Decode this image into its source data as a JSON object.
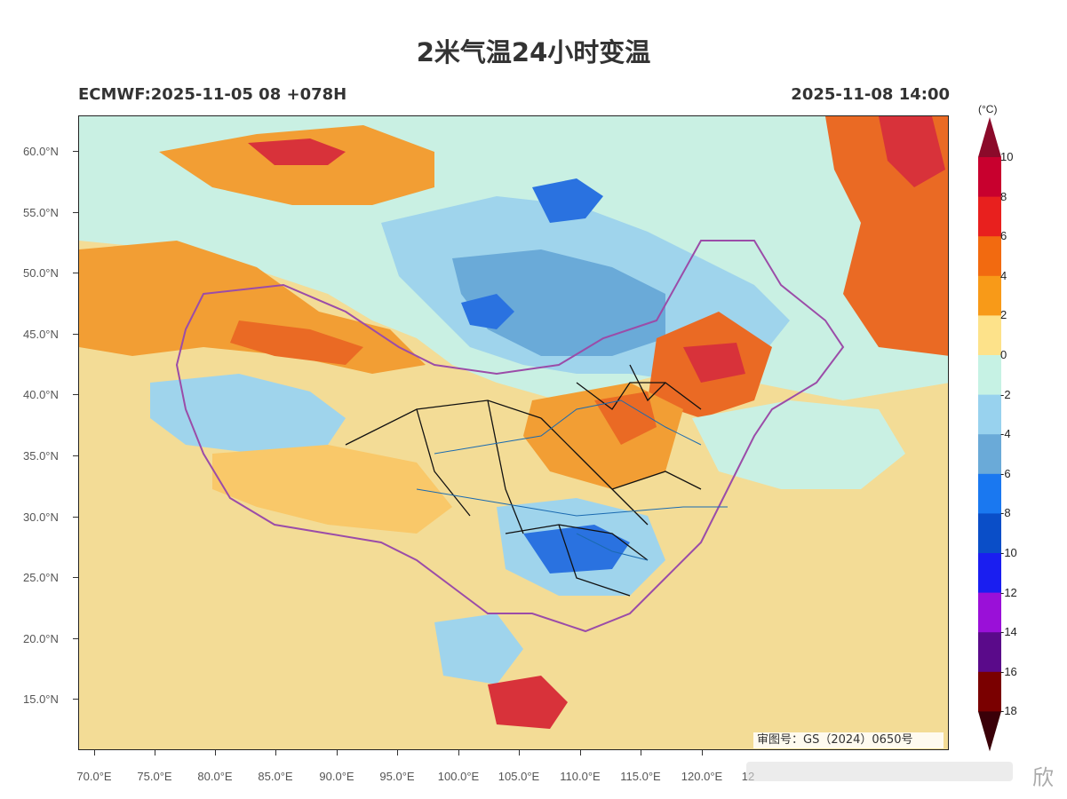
{
  "title": "2米气温24小时变温",
  "subtitle_left": "ECMWF:2025-11-05 08 +078H",
  "subtitle_right": "2025-11-08 14:00",
  "unit": "(°C)",
  "lat_labels": [
    "60.0°N",
    "55.0°N",
    "50.0°N",
    "45.0°N",
    "40.0°N",
    "35.0°N",
    "30.0°N",
    "25.0°N",
    "20.0°N",
    "15.0°N"
  ],
  "lon_labels": [
    "70.0°E",
    "75.0°E",
    "80.0°E",
    "85.0°E",
    "90.0°E",
    "95.0°E",
    "100.0°E",
    "105.0°E",
    "110.0°E",
    "115.0°E",
    "120.0°E",
    "12"
  ],
  "colorbar": {
    "labels": [
      "10",
      "8",
      "6",
      "4",
      "2",
      "0",
      "-2",
      "-4",
      "-6",
      "-8",
      "-10",
      "-12",
      "-14",
      "-16",
      "-18"
    ],
    "colors": [
      "#8b0a2a",
      "#c8002e",
      "#e8201e",
      "#f26a10",
      "#f89a18",
      "#fde28a",
      "#c6f2e4",
      "#98d2ee",
      "#6aaad8",
      "#1a78f0",
      "#0a4ec8",
      "#1a1ef0",
      "#9a10d8",
      "#5a0a8a",
      "#7a0000",
      "#3a0008"
    ]
  },
  "map_colors": {
    "background": "#f3dc96",
    "warm_light": "#f9c869",
    "warm": "#f29e34",
    "warmer": "#ea6a24",
    "hot": "#d8323a",
    "cool_light": "#c9f0e3",
    "cool": "#9fd4ec",
    "cooler": "#6aaad8",
    "cold": "#2a72e0",
    "border_country": "#9b4ca8",
    "border_province": "#111111",
    "river": "#1a6ab0"
  },
  "map_stamp": "审图号：GS（2024）0650号",
  "watermark": "欣"
}
